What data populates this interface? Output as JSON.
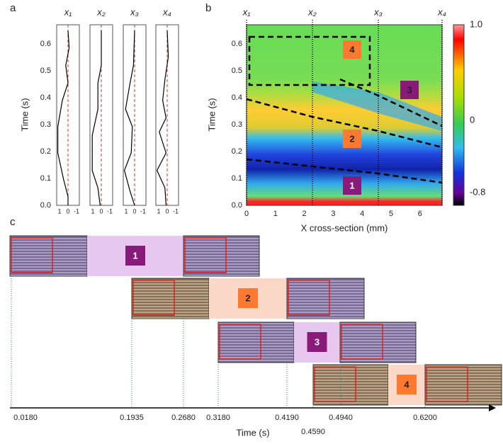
{
  "panel_a": {
    "label": "a",
    "titles": [
      "x₁",
      "x₂",
      "x₃",
      "x₄"
    ],
    "y_label": "Time (s)",
    "y_ticks": [
      "0.0",
      "0.1",
      "0.2",
      "0.3",
      "0.4",
      "0.5",
      "0.6"
    ],
    "x_ticks": [
      "1",
      "0",
      "-1"
    ]
  },
  "panel_b": {
    "label": "b",
    "titles": [
      "x₁",
      "x₂",
      "x₃",
      "x₄"
    ],
    "y_label": "Time (s)",
    "y_ticks": [
      "0.0",
      "0.1",
      "0.2",
      "0.3",
      "0.4",
      "0.5",
      "0.6"
    ],
    "x_ticks": [
      "0",
      "1",
      "2",
      "3",
      "4",
      "5",
      "6"
    ],
    "x_label": "X cross-section (mm)",
    "colorbar_labels": [
      "1.0",
      "0",
      "-0.8"
    ],
    "regions": [
      "1",
      "2",
      "3",
      "4"
    ]
  },
  "panel_c": {
    "label": "c",
    "stages": [
      "1",
      "2",
      "3",
      "4"
    ],
    "times": [
      "0.0180",
      "0.1935",
      "0.2680",
      "0.3180",
      "0.4190",
      "0.4590",
      "0.4940",
      "0.6200"
    ],
    "x_label": "Time (s)"
  }
}
